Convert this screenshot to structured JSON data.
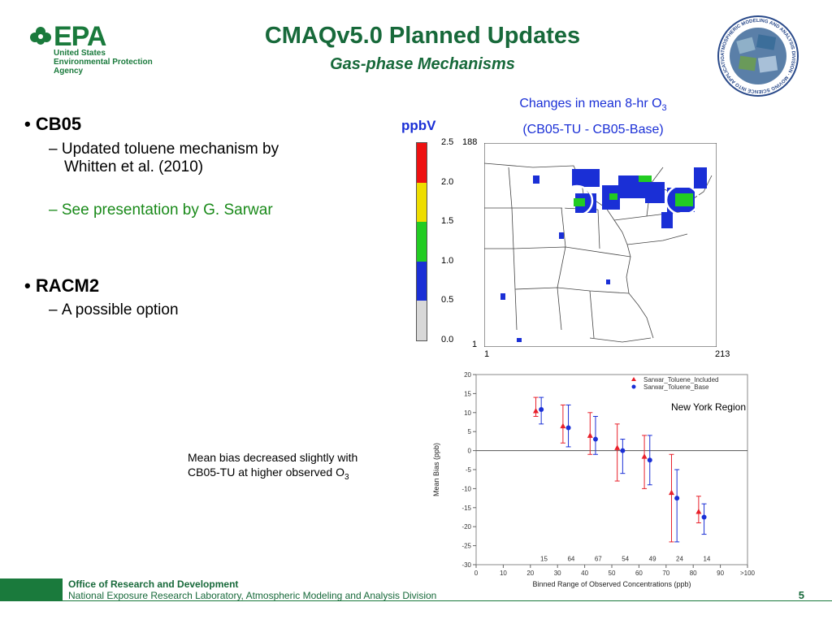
{
  "header": {
    "logo_word": "EPA",
    "logo_sub": [
      "United States",
      "Environmental Protection",
      "Agency"
    ],
    "title": "CMAQv5.0 Planned Updates",
    "subtitle": "Gas-phase Mechanisms",
    "seal_text": "ATMOSPHERIC MODELING AND ANALYSIS DIVISION · MOVING SCIENCE INTO APPLICATIONS"
  },
  "bullets": [
    {
      "label": "CB05",
      "subs": [
        {
          "text": "Updated toluene mechanism by",
          "text2": "Whitten et al. (2010)",
          "color": "#000000"
        },
        {
          "text": "See presentation by G. Sarwar",
          "color": "#1a8a1a"
        }
      ]
    },
    {
      "label": "RACM2",
      "subs": [
        {
          "text": "A possible option",
          "color": "#000000"
        }
      ]
    }
  ],
  "map": {
    "title_line1": "Changes in mean 8-hr O",
    "title_sub": "3",
    "title_line2": "(CB05-TU - CB05-Base)",
    "unit": "ppbV",
    "grid_labels": {
      "y_top": "188",
      "y_bottom": "1",
      "x_left": "1",
      "x_right": "213"
    },
    "colorbar": {
      "ticks": [
        "2.5",
        "2.0",
        "1.5",
        "1.0",
        "0.5",
        "0.0"
      ],
      "bands": [
        "#ee1111",
        "#eedd00",
        "#22cc22",
        "#1a2fd6",
        "#d8d8d8"
      ]
    }
  },
  "note": {
    "line1": "Mean bias decreased slightly with",
    "line2": "CB05-TU at higher observed O",
    "line2_sub": "3"
  },
  "chart_data": {
    "type": "scatter",
    "title": "",
    "annotation": "New York Region",
    "xlabel": "Binned Range of Observed Concentrations (ppb)",
    "ylabel": "Mean Bias (ppb)",
    "xlim": [
      0,
      100
    ],
    "ylim": [
      -30,
      20
    ],
    "x_ticks": [
      "0",
      "10",
      "20",
      "30",
      "40",
      "50",
      "60",
      "70",
      "80",
      "90",
      ">100"
    ],
    "y_ticks": [
      "20",
      "15",
      "10",
      "5",
      "0",
      "-5",
      "-10",
      "-15",
      "-20",
      "-25",
      "-30"
    ],
    "counts": [
      {
        "x": 25,
        "label": "15"
      },
      {
        "x": 35,
        "label": "64"
      },
      {
        "x": 45,
        "label": "67"
      },
      {
        "x": 55,
        "label": "54"
      },
      {
        "x": 65,
        "label": "49"
      },
      {
        "x": 75,
        "label": "24"
      },
      {
        "x": 85,
        "label": "14"
      }
    ],
    "series": [
      {
        "name": "Sarwar_Toluene_Included",
        "color": "#e8202a",
        "marker": "triangle",
        "x": [
          22,
          32,
          42,
          52,
          62,
          72,
          82
        ],
        "y": [
          10.5,
          6.5,
          4.0,
          0.8,
          -1.5,
          -11.0,
          -16.0
        ],
        "low": [
          9,
          2,
          -1,
          -8,
          -10,
          -24,
          -19
        ],
        "high": [
          14,
          12,
          10,
          7,
          4,
          -1,
          -12
        ]
      },
      {
        "name": "Sarwar_Toluene_Base",
        "color": "#1a2fd6",
        "marker": "circle",
        "x": [
          24,
          34,
          44,
          54,
          64,
          74,
          84
        ],
        "y": [
          10.8,
          6.0,
          3.0,
          0.0,
          -2.5,
          -12.5,
          -17.5
        ],
        "low": [
          7,
          1,
          -1,
          -6,
          -9,
          -24,
          -22
        ],
        "high": [
          14,
          12,
          9,
          3,
          4,
          -5,
          -14
        ]
      }
    ]
  },
  "footer": {
    "office": "Office of Research and Development",
    "lab": "National Exposure Research Laboratory, Atmospheric Modeling and Analysis Division",
    "page": "5"
  }
}
